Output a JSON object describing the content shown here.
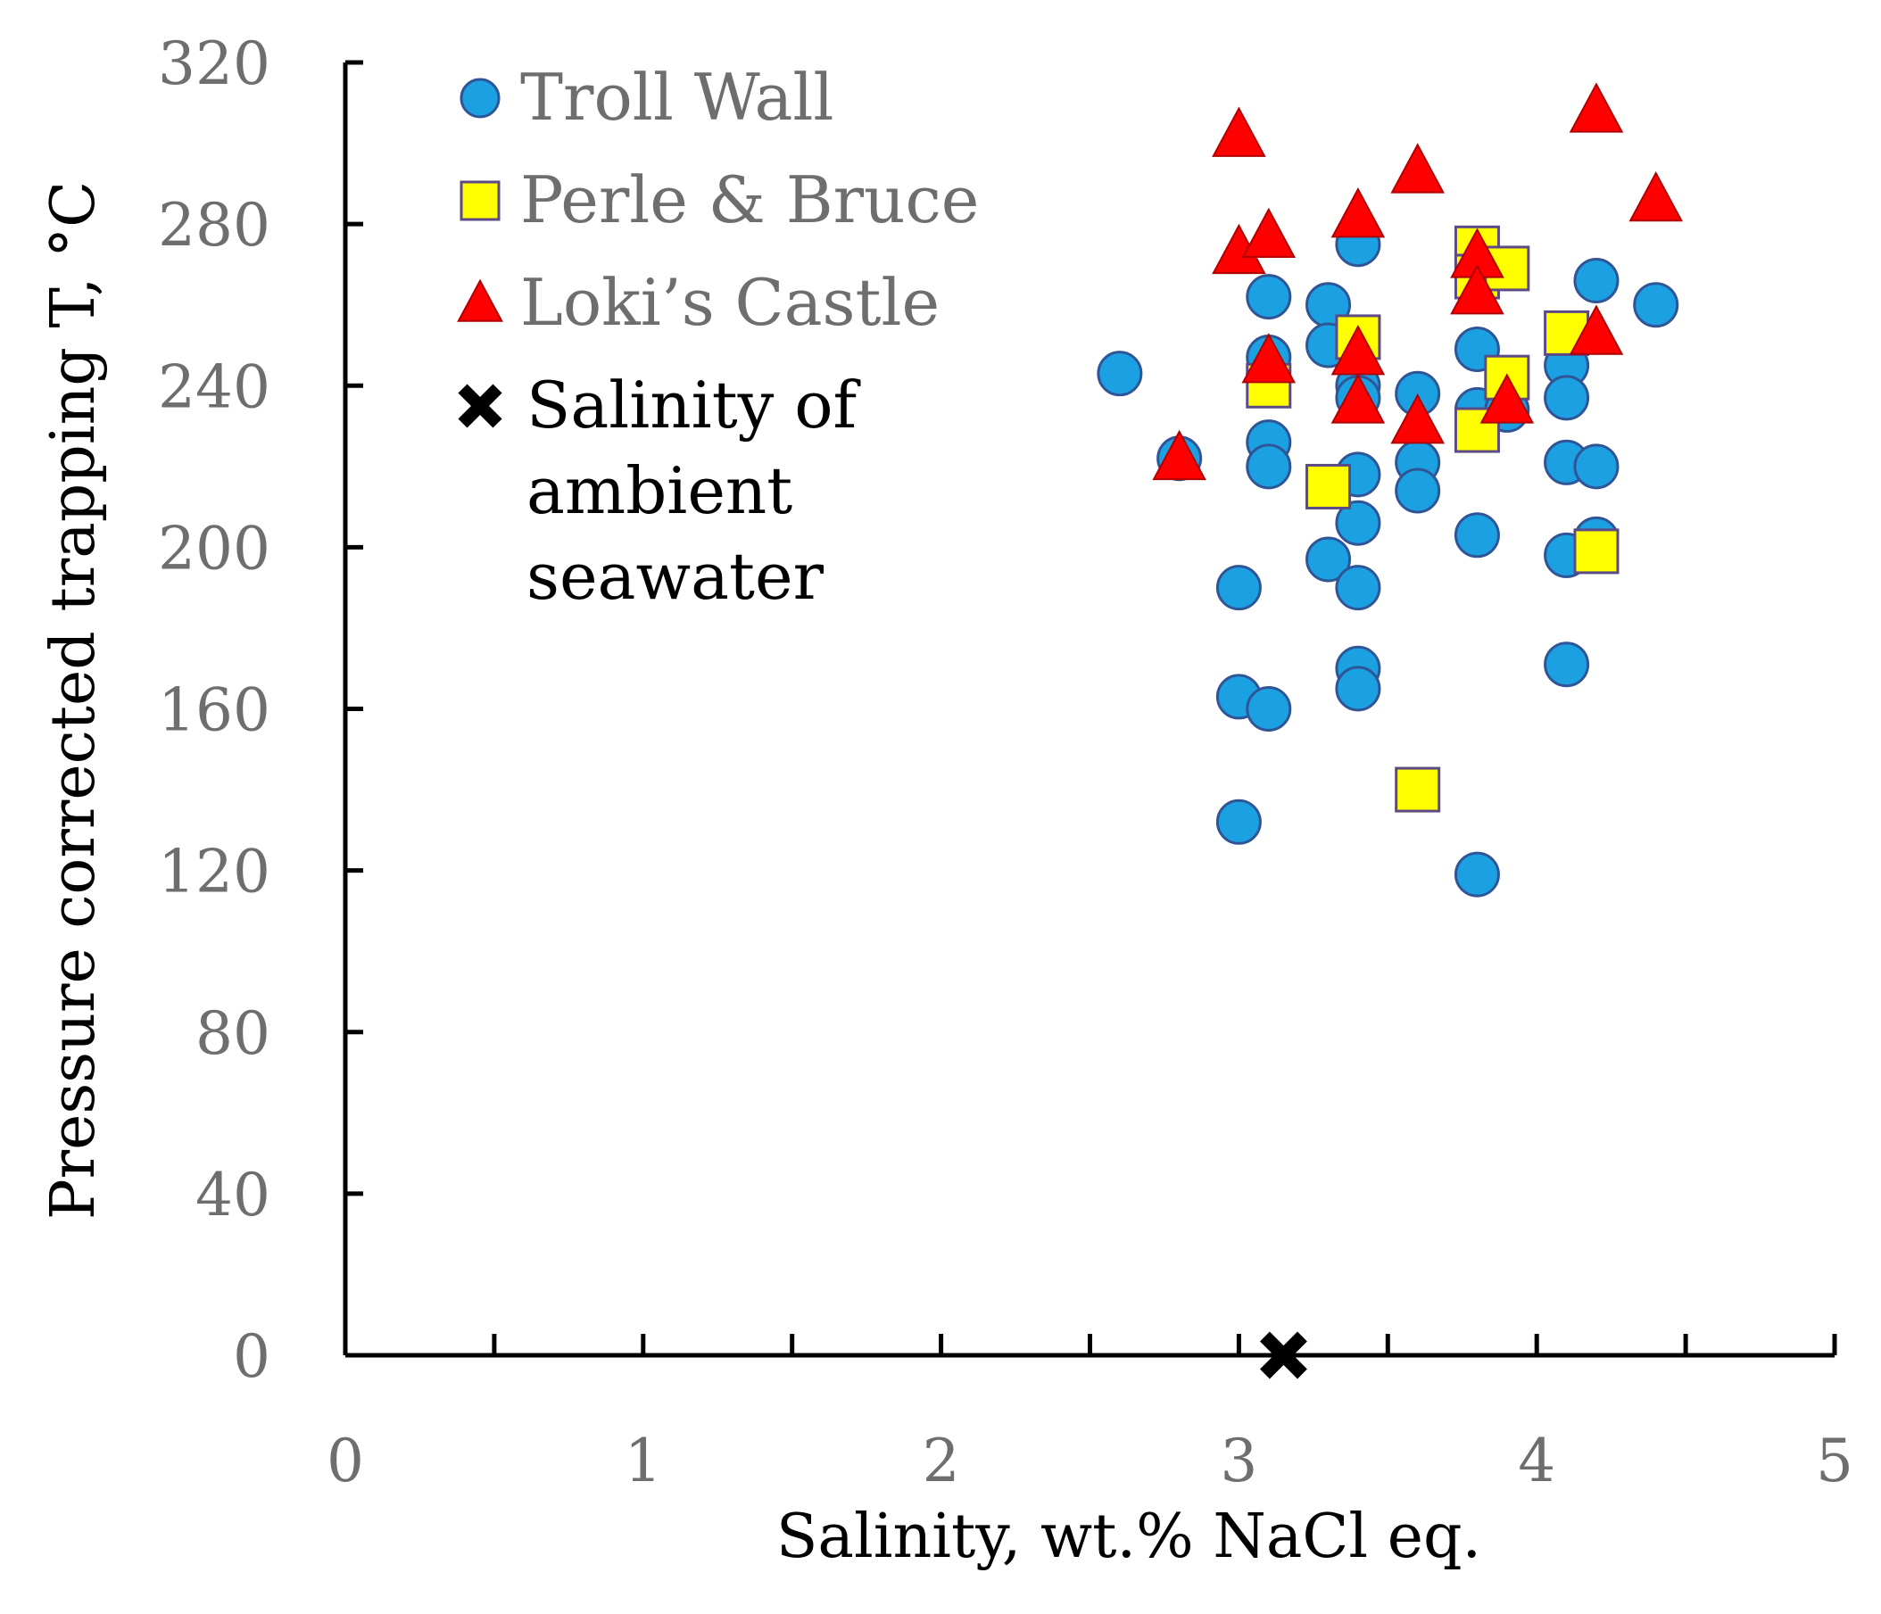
{
  "chart_data": {
    "type": "scatter",
    "title": "",
    "xlabel": "Salinity, wt.% NaCl eq.",
    "ylabel": "Pressure corrected trapping T, °C",
    "xlim": [
      0,
      5
    ],
    "ylim": [
      0,
      320
    ],
    "x_ticks": [
      0,
      1,
      2,
      3,
      4,
      5
    ],
    "x_minor_ticks": [
      0.5,
      1.5,
      2.5,
      3.5,
      4.5
    ],
    "y_ticks": [
      0,
      40,
      80,
      120,
      160,
      200,
      240,
      280,
      320
    ],
    "grid": false,
    "legend_position": "top-left",
    "series": [
      {
        "name": "Troll Wall",
        "marker": "circle",
        "color": "#1ba1e2",
        "points": [
          [
            2.6,
            243
          ],
          [
            2.8,
            222
          ],
          [
            3.0,
            190
          ],
          [
            3.0,
            163
          ],
          [
            3.0,
            132
          ],
          [
            3.1,
            262
          ],
          [
            3.1,
            247
          ],
          [
            3.1,
            226
          ],
          [
            3.1,
            220
          ],
          [
            3.1,
            160
          ],
          [
            3.3,
            260
          ],
          [
            3.3,
            250
          ],
          [
            3.3,
            215
          ],
          [
            3.3,
            197
          ],
          [
            3.4,
            275
          ],
          [
            3.4,
            240
          ],
          [
            3.4,
            237
          ],
          [
            3.4,
            218
          ],
          [
            3.4,
            206
          ],
          [
            3.4,
            190
          ],
          [
            3.4,
            170
          ],
          [
            3.4,
            165
          ],
          [
            3.6,
            238
          ],
          [
            3.6,
            221
          ],
          [
            3.6,
            214
          ],
          [
            3.8,
            249
          ],
          [
            3.8,
            234
          ],
          [
            3.8,
            203
          ],
          [
            3.8,
            119
          ],
          [
            3.9,
            234
          ],
          [
            4.1,
            245
          ],
          [
            4.1,
            237
          ],
          [
            4.1,
            221
          ],
          [
            4.1,
            198
          ],
          [
            4.1,
            171
          ],
          [
            4.2,
            266
          ],
          [
            4.2,
            220
          ],
          [
            4.2,
            202
          ],
          [
            4.4,
            260
          ]
        ]
      },
      {
        "name": "Perle & Bruce",
        "marker": "square",
        "color": "#ffff00",
        "points": [
          [
            3.1,
            240
          ],
          [
            3.3,
            215
          ],
          [
            3.4,
            252
          ],
          [
            3.6,
            140
          ],
          [
            3.8,
            274
          ],
          [
            3.8,
            267
          ],
          [
            3.8,
            229
          ],
          [
            3.9,
            269
          ],
          [
            3.9,
            242
          ],
          [
            4.1,
            253
          ],
          [
            4.2,
            199
          ]
        ]
      },
      {
        "name": "Loki’s Castle",
        "marker": "triangle",
        "color": "#ff0000",
        "points": [
          [
            2.8,
            222
          ],
          [
            3.0,
            302
          ],
          [
            3.0,
            273
          ],
          [
            3.1,
            277
          ],
          [
            3.1,
            246
          ],
          [
            3.4,
            282
          ],
          [
            3.4,
            248
          ],
          [
            3.4,
            236
          ],
          [
            3.6,
            293
          ],
          [
            3.6,
            231
          ],
          [
            3.8,
            272
          ],
          [
            3.8,
            263
          ],
          [
            3.9,
            236
          ],
          [
            4.2,
            308
          ],
          [
            4.2,
            253
          ],
          [
            4.4,
            286
          ]
        ]
      },
      {
        "name": "Salinity of ambient seawater",
        "marker": "cross",
        "color": "#000000",
        "points": [
          [
            3.15,
            0
          ]
        ]
      }
    ],
    "legend": [
      {
        "label": "Troll Wall",
        "marker": "circle",
        "text_color": "#6e6e6e"
      },
      {
        "label": "Perle & Bruce",
        "marker": "square",
        "text_color": "#6e6e6e"
      },
      {
        "label": "Loki’s Castle",
        "marker": "triangle",
        "text_color": "#6e6e6e"
      },
      {
        "label_lines": [
          "Salinity of",
          "ambient",
          "seawater"
        ],
        "marker": "cross",
        "text_color": "#000000"
      }
    ]
  }
}
